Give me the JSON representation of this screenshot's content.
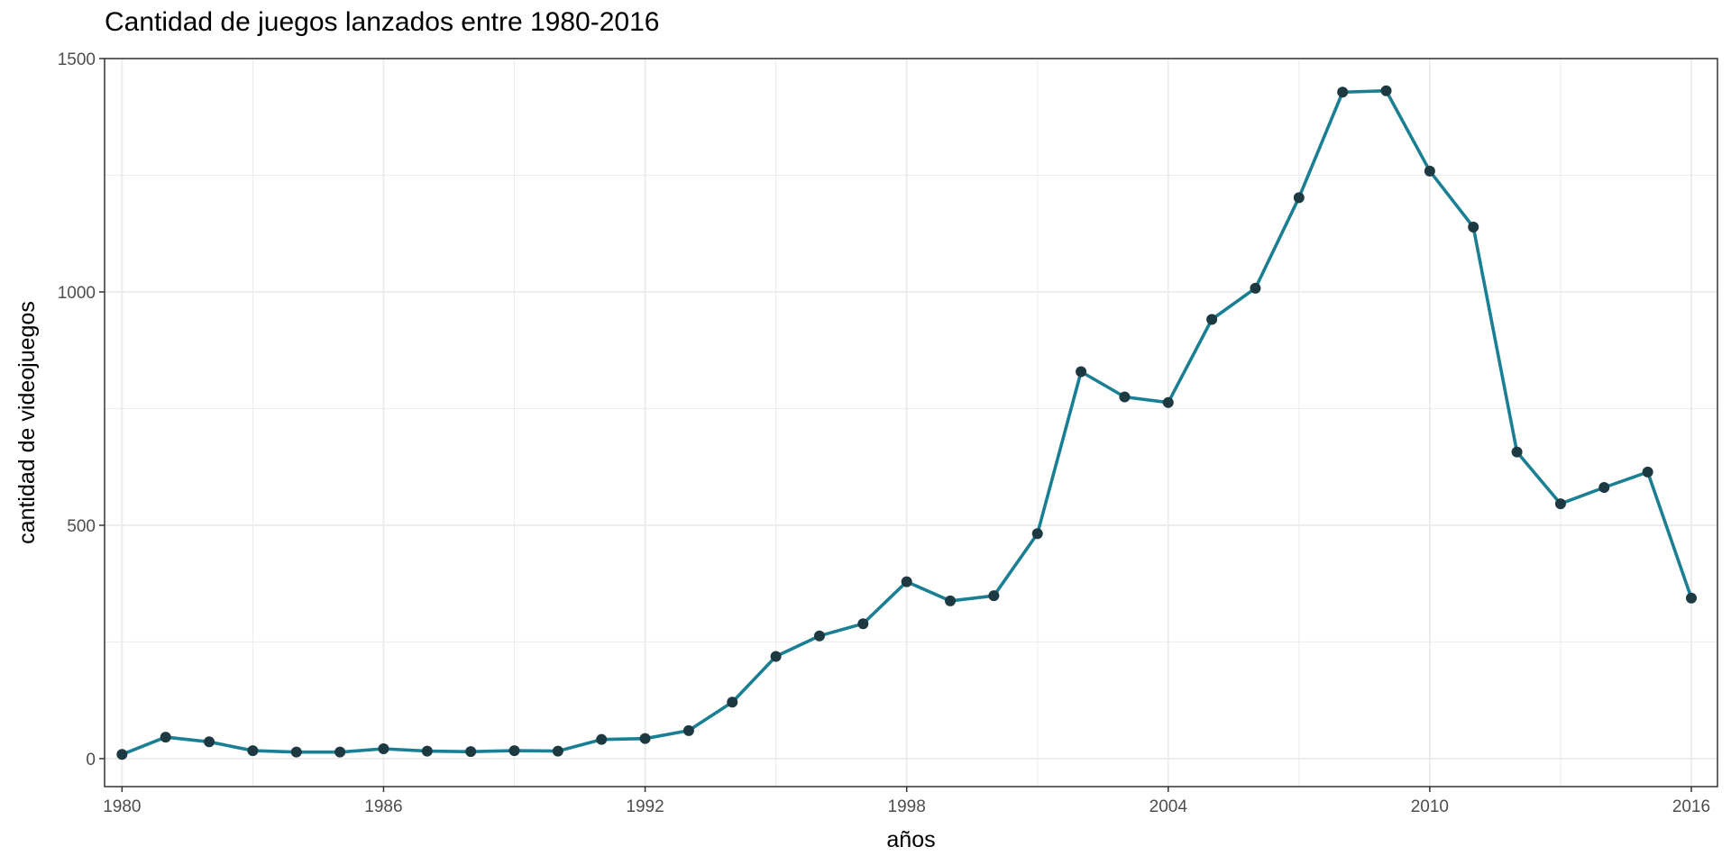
{
  "chart_data": {
    "type": "line",
    "title": "Cantidad de juegos lanzados entre 1980-2016",
    "xlabel": "años",
    "ylabel": "cantidad de videojuegos",
    "xlim": [
      1979.6,
      2016.6
    ],
    "ylim": [
      -60,
      1500
    ],
    "x_ticks": [
      1980,
      1986,
      1992,
      1998,
      2004,
      2010,
      2016
    ],
    "y_ticks": [
      0,
      500,
      1000,
      1500
    ],
    "grid": true,
    "legend": "none",
    "colors": {
      "line": "#1b7f94",
      "point": "#1d3a43",
      "grid": "#ebebeb",
      "border": "#333333"
    },
    "series": [
      {
        "x": [
          1980,
          1981,
          1982,
          1983,
          1984,
          1985,
          1986,
          1987,
          1988,
          1989,
          1990,
          1991,
          1992,
          1993,
          1994,
          1995,
          1996,
          1997,
          1998,
          1999,
          2000,
          2001,
          2002,
          2003,
          2004,
          2005,
          2006,
          2007,
          2008,
          2009,
          2010,
          2011,
          2012,
          2013,
          2014,
          2015,
          2016
        ],
        "y": [
          9,
          46,
          36,
          17,
          14,
          14,
          21,
          16,
          15,
          17,
          16,
          41,
          43,
          60,
          121,
          219,
          263,
          289,
          379,
          338,
          349,
          482,
          829,
          775,
          763,
          941,
          1008,
          1202,
          1428,
          1431,
          1259,
          1139,
          657,
          546,
          581,
          614,
          344
        ]
      }
    ]
  }
}
